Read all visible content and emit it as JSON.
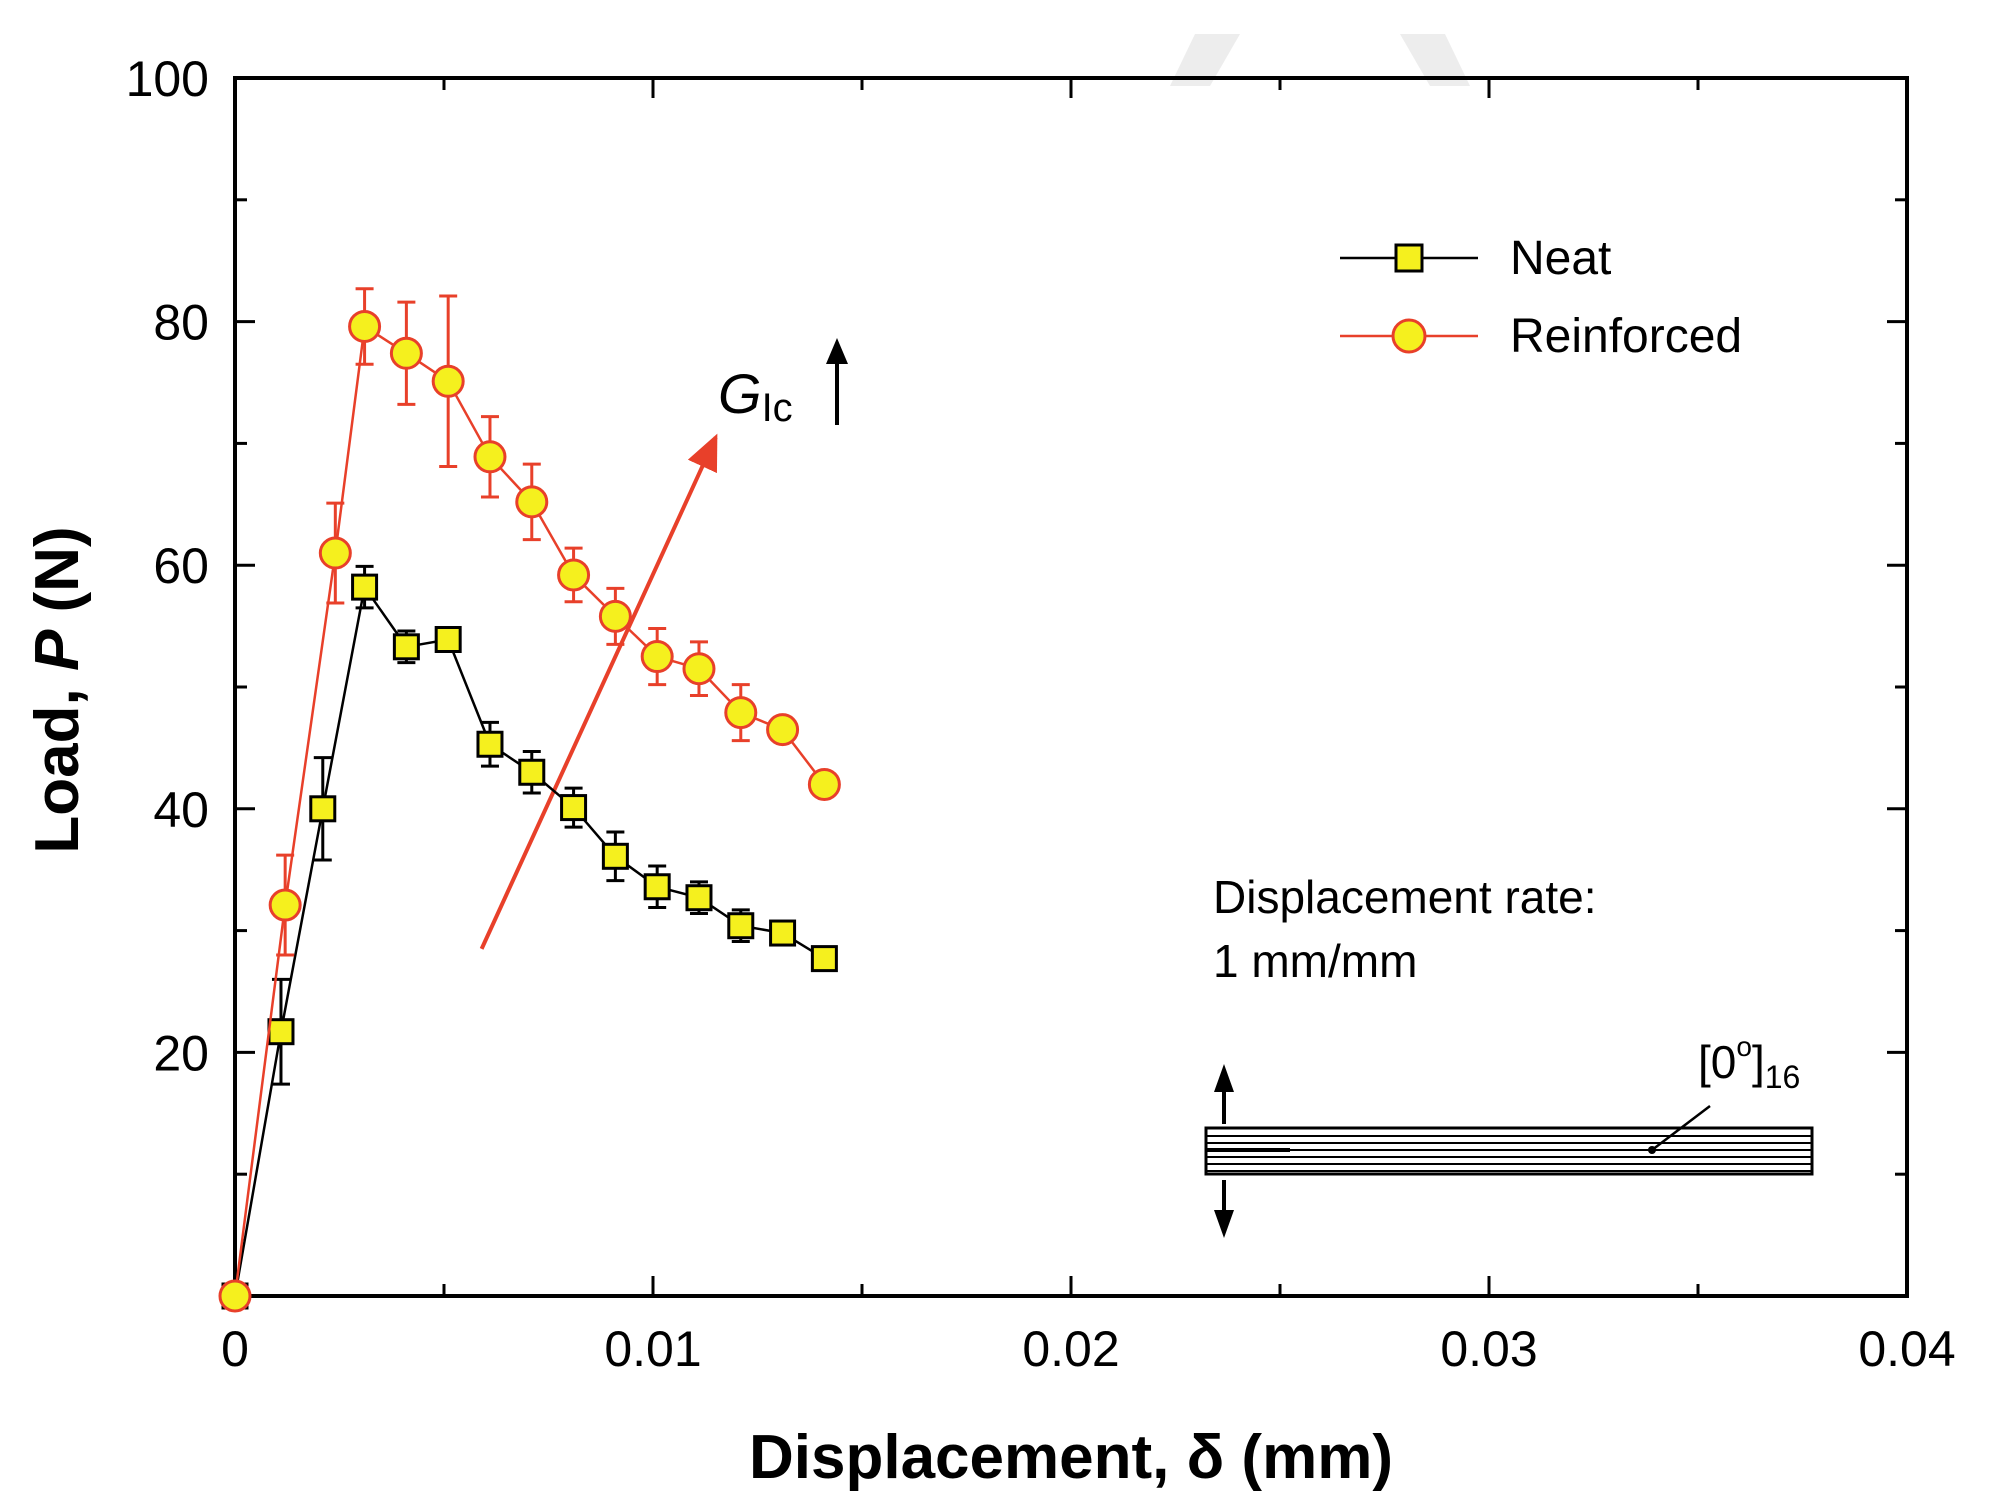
{
  "chart_data": {
    "type": "line",
    "title": "",
    "xlabel": "Displacement, δ (mm)",
    "ylabel_parts": [
      "Load,  ",
      "P",
      " (N)"
    ],
    "xlim": [
      0,
      0.04
    ],
    "ylim": [
      0,
      100
    ],
    "x_ticks": [
      0,
      0.01,
      0.02,
      0.03,
      0.04
    ],
    "x_tick_labels": [
      "0",
      "0.01",
      "0.02",
      "0.03",
      "0.04"
    ],
    "y_ticks": [
      20,
      40,
      60,
      80,
      100
    ],
    "y_tick_labels": [
      "20",
      "40",
      "60",
      "80",
      "100"
    ],
    "grid": false,
    "legend_position": "top-right",
    "series": [
      {
        "name": "Neat",
        "marker": "square",
        "line_color": "#000000",
        "marker_fill": "#f5f01e",
        "marker_edge": "#000000",
        "points": [
          {
            "x": 0.0,
            "y": 0.0,
            "err": 0.0
          },
          {
            "x": 0.0011,
            "y": 21.7,
            "err": 4.3
          },
          {
            "x": 0.0021,
            "y": 40.0,
            "err": 4.2
          },
          {
            "x": 0.0031,
            "y": 58.2,
            "err": 1.7
          },
          {
            "x": 0.0041,
            "y": 53.3,
            "err": 1.3
          },
          {
            "x": 0.0051,
            "y": 53.9,
            "err": 0.8
          },
          {
            "x": 0.0061,
            "y": 45.3,
            "err": 1.8
          },
          {
            "x": 0.0071,
            "y": 43.0,
            "err": 1.7
          },
          {
            "x": 0.0081,
            "y": 40.1,
            "err": 1.6
          },
          {
            "x": 0.0091,
            "y": 36.1,
            "err": 2.0
          },
          {
            "x": 0.0101,
            "y": 33.6,
            "err": 1.7
          },
          {
            "x": 0.0111,
            "y": 32.7,
            "err": 1.3
          },
          {
            "x": 0.0121,
            "y": 30.4,
            "err": 1.3
          },
          {
            "x": 0.0131,
            "y": 29.8,
            "err": 0.8
          },
          {
            "x": 0.0141,
            "y": 27.7,
            "err": 0.6
          }
        ]
      },
      {
        "name": "Reinforced",
        "marker": "circle",
        "line_color": "#e8402a",
        "marker_fill": "#f5f01e",
        "marker_edge": "#e8402a",
        "points": [
          {
            "x": 0.0,
            "y": 0.0,
            "err": 0.0
          },
          {
            "x": 0.0012,
            "y": 32.1,
            "err": 4.1
          },
          {
            "x": 0.0024,
            "y": 61.0,
            "err": 4.1
          },
          {
            "x": 0.0031,
            "y": 79.6,
            "err": 3.1
          },
          {
            "x": 0.0041,
            "y": 77.4,
            "err": 4.2
          },
          {
            "x": 0.0051,
            "y": 75.1,
            "err": 7.0
          },
          {
            "x": 0.0061,
            "y": 68.9,
            "err": 3.3
          },
          {
            "x": 0.0071,
            "y": 65.2,
            "err": 3.1
          },
          {
            "x": 0.0081,
            "y": 59.2,
            "err": 2.2
          },
          {
            "x": 0.0091,
            "y": 55.8,
            "err": 2.3
          },
          {
            "x": 0.0101,
            "y": 52.5,
            "err": 2.3
          },
          {
            "x": 0.0111,
            "y": 51.5,
            "err": 2.2
          },
          {
            "x": 0.0121,
            "y": 47.9,
            "err": 2.3
          },
          {
            "x": 0.0131,
            "y": 46.5,
            "err": 0.9
          },
          {
            "x": 0.0141,
            "y": 42.0,
            "err": 1.0
          }
        ]
      }
    ],
    "annotations": {
      "trend_arrow": {
        "color": "#e8402a",
        "from": {
          "x": 0.0059,
          "y": 28.5
        },
        "to": {
          "x": 0.0115,
          "y": 70.5
        }
      },
      "glc_label": {
        "main": "G",
        "sub": "Ic",
        "arrow": "up"
      },
      "rate_label": [
        "Displacement rate:",
        "1 mm/mm"
      ],
      "layup_label": {
        "main": "[0",
        "sup": "o",
        "close": "]",
        "sub": "16"
      }
    }
  }
}
